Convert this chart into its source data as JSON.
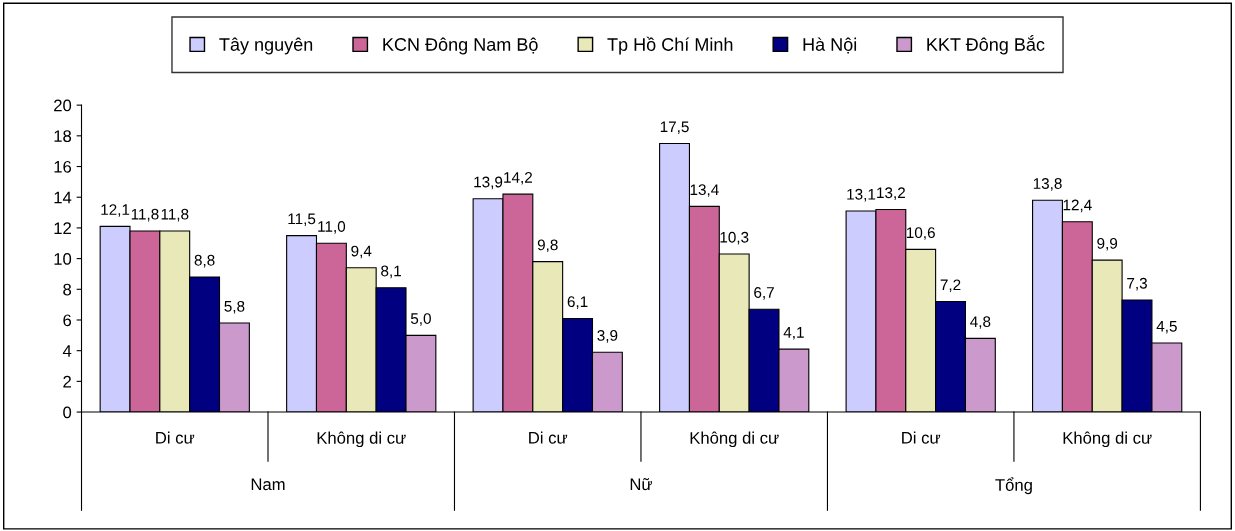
{
  "chart_data": {
    "type": "bar",
    "categories": [
      "Di cư",
      "Không di cư",
      "Di cư",
      "Không di cư",
      "Di cư",
      "Không di cư"
    ],
    "annotations": [
      "Nam",
      "Nữ",
      "Tổng"
    ],
    "series": [
      {
        "name": "Tây nguyên",
        "color": "#ccccff",
        "values": [
          12.1,
          11.5,
          13.9,
          17.5,
          13.1,
          13.8
        ],
        "value_labels": [
          "12,1",
          "11,5",
          "13,9",
          "17,5",
          "13,1",
          "13,8"
        ]
      },
      {
        "name": "KCN Đông Nam Bộ",
        "color": "#cc6699",
        "values": [
          11.8,
          11.0,
          14.2,
          13.4,
          13.2,
          12.4
        ],
        "value_labels": [
          "11,8",
          "11,0",
          "14,2",
          "13,4",
          "13,2",
          "12,4"
        ]
      },
      {
        "name": "Tp Hồ Chí Minh",
        "color": "#e8e8b8",
        "values": [
          11.8,
          9.4,
          9.8,
          10.3,
          10.6,
          9.9
        ],
        "value_labels": [
          "11,8",
          "9,4",
          "9,8",
          "10,3",
          "10,6",
          "9,9"
        ]
      },
      {
        "name": "Hà Nội",
        "color": "#000080",
        "values": [
          8.8,
          8.1,
          6.1,
          6.7,
          7.2,
          7.3
        ],
        "value_labels": [
          "8,8",
          "8,1",
          "6,1",
          "6,7",
          "7,2",
          "7,3"
        ]
      },
      {
        "name": "KKT Đông Bắc",
        "color": "#cc99cc",
        "values": [
          5.8,
          5.0,
          3.9,
          4.1,
          4.8,
          4.5
        ],
        "value_labels": [
          "5,8",
          "5,0",
          "3,9",
          "4,1",
          "4,8",
          "4,5"
        ]
      }
    ],
    "ylim": [
      0,
      20
    ],
    "yticks": [
      0,
      2,
      4,
      6,
      8,
      10,
      12,
      14,
      16,
      18,
      20
    ],
    "grid": false,
    "legend": "top"
  }
}
